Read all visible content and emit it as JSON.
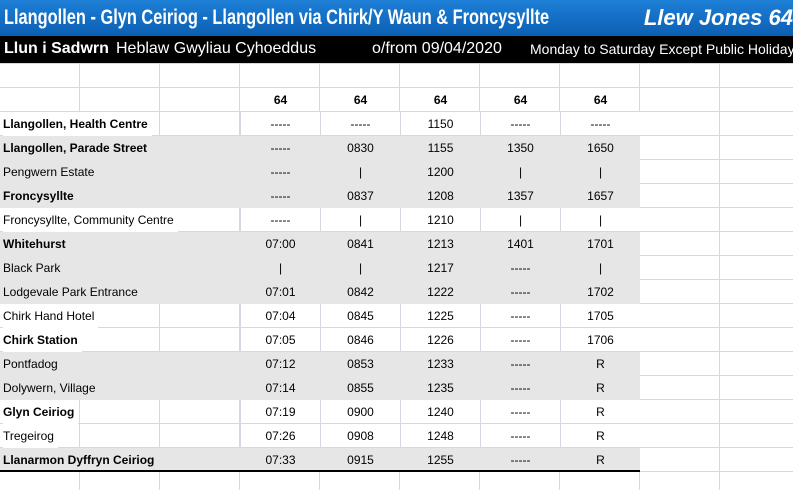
{
  "header": {
    "title": "Llangollen - Glyn Ceiriog - Llangollen via Chirk/Y Waun & Froncysyllte",
    "operator": "Llew Jones 64"
  },
  "subheader": {
    "days_welsh": "Llun i Sadwrn",
    "except_welsh": "Heblaw Gwyliau Cyhoeddus",
    "valid_from": "o/from 09/04/2020",
    "days_english": "Monday to Saturday Except Public Holidays"
  },
  "services": [
    "64",
    "64",
    "64",
    "64",
    "64"
  ],
  "stops": [
    {
      "name": "Llangollen, Health Centre",
      "bold": true,
      "shade": false,
      "times": [
        "-----",
        "-----",
        "1150",
        "-----",
        "-----"
      ]
    },
    {
      "name": "Llangollen, Parade Street",
      "bold": true,
      "shade": true,
      "times": [
        "-----",
        "0830",
        "1155",
        "1350",
        "1650"
      ]
    },
    {
      "name": "Pengwern Estate",
      "bold": false,
      "shade": true,
      "times": [
        "-----",
        "|",
        "1200",
        "|",
        "|"
      ]
    },
    {
      "name": "Froncysyllte",
      "bold": true,
      "shade": true,
      "times": [
        "-----",
        "0837",
        "1208",
        "1357",
        "1657"
      ]
    },
    {
      "name": "Froncysyllte, Community Centre",
      "bold": false,
      "shade": false,
      "times": [
        "-----",
        "|",
        "1210",
        "|",
        "|"
      ]
    },
    {
      "name": "Whitehurst",
      "bold": true,
      "shade": true,
      "times": [
        "07:00",
        "0841",
        "1213",
        "1401",
        "1701"
      ]
    },
    {
      "name": "Black Park",
      "bold": false,
      "shade": true,
      "times": [
        "|",
        "|",
        "1217",
        "-----",
        "|"
      ]
    },
    {
      "name": "Lodgevale Park Entrance",
      "bold": false,
      "shade": true,
      "times": [
        "07:01",
        "0842",
        "1222",
        "-----",
        "1702"
      ]
    },
    {
      "name": "Chirk Hand Hotel",
      "bold": false,
      "shade": false,
      "times": [
        "07:04",
        "0845",
        "1225",
        "-----",
        "1705"
      ]
    },
    {
      "name": "Chirk Station",
      "bold": true,
      "shade": false,
      "times": [
        "07:05",
        "0846",
        "1226",
        "-----",
        "1706"
      ]
    },
    {
      "name": "Pontfadog",
      "bold": false,
      "shade": true,
      "times": [
        "07:12",
        "0853",
        "1233",
        "-----",
        "R"
      ]
    },
    {
      "name": "Dolywern, Village",
      "bold": false,
      "shade": true,
      "times": [
        "07:14",
        "0855",
        "1235",
        "-----",
        "R"
      ]
    },
    {
      "name": "Glyn Ceiriog",
      "bold": true,
      "shade": false,
      "times": [
        "07:19",
        "0900",
        "1240",
        "-----",
        "R"
      ]
    },
    {
      "name": "Tregeirog",
      "bold": false,
      "shade": false,
      "times": [
        "07:26",
        "0908",
        "1248",
        "-----",
        "R"
      ]
    },
    {
      "name": "Llanarmon Dyffryn Ceiriog",
      "bold": true,
      "shade": true,
      "times": [
        "07:33",
        "0915",
        "1255",
        "-----",
        "R"
      ]
    }
  ]
}
